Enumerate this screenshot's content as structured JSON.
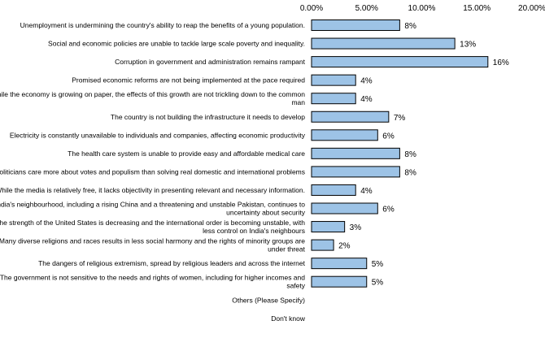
{
  "chart_data": {
    "type": "bar",
    "orientation": "horizontal",
    "title": "",
    "xlabel": "",
    "ylabel": "",
    "xlim": [
      0,
      20
    ],
    "tick_values": [
      0,
      5,
      10,
      15,
      20
    ],
    "tick_labels": [
      "0.00%",
      "5.00%",
      "10.00%",
      "15.00%",
      "20.00%"
    ],
    "bar_color": "#9dc3e6",
    "bar_border_color": "#000000",
    "categories": [
      {
        "label": "Unemployment is undermining  the country's ability to reap the benefits  of a young population.",
        "lines": [
          "Unemployment is undermining  the country's ability to reap the benefits  of a young population."
        ],
        "value": 8,
        "value_label": "8%"
      },
      {
        "label": "Social and economic policies are unable to tackle large scale poverty and inequality.",
        "lines": [
          "Social and economic policies are unable to tackle large scale poverty and inequality."
        ],
        "value": 13,
        "value_label": "13%"
      },
      {
        "label": "Corruption in government and administration remains rampant",
        "lines": [
          "Corruption in government and administration remains rampant"
        ],
        "value": 16,
        "value_label": "16%"
      },
      {
        "label": "Promised economic reforms are not being implemented at the pace required",
        "lines": [
          "Promised economic reforms are not being implemented at the pace required"
        ],
        "value": 4,
        "value_label": "4%"
      },
      {
        "label": "While the economy is growing on paper, the effects of this growth are not trickling down to the common man",
        "lines": [
          "While the economy is growing on paper, the effects of this growth are not trickling down to the common",
          "man"
        ],
        "value": 4,
        "value_label": "4%"
      },
      {
        "label": "The country is not building the infrastructure it needs to develop",
        "lines": [
          "The country is not building the infrastructure it needs to develop"
        ],
        "value": 7,
        "value_label": "7%"
      },
      {
        "label": "Electricity is constantly unavailable to individuals and companies, affecting economic productivity",
        "lines": [
          "Electricity is constantly unavailable to individuals and companies, affecting economic productivity"
        ],
        "value": 6,
        "value_label": "6%"
      },
      {
        "label": "The health care system is unable to provide easy and affordable medical care",
        "lines": [
          "The health care system is unable to provide easy and affordable medical care"
        ],
        "value": 8,
        "value_label": "8%"
      },
      {
        "label": "Politicians care more about votes and populism than solving real domestic and international problems",
        "lines": [
          "Politicians care more about votes and populism than solving real domestic and international problems"
        ],
        "value": 8,
        "value_label": "8%"
      },
      {
        "label": "While the media is relatively free, it lacks objectivity in presenting relevant and necessary information.",
        "lines": [
          "While the media is relatively free, it lacks objectivity in presenting relevant and necessary information."
        ],
        "value": 4,
        "value_label": "4%"
      },
      {
        "label": "India's neighbourhood,  including  a rising China and a threatening  and unstable Pakistan, continues to uncertainty about security",
        "lines": [
          "India's neighbourhood,  including  a rising China and a threatening  and unstable Pakistan, continues to",
          "uncertainty about security"
        ],
        "value": 6,
        "value_label": "6%"
      },
      {
        "label": "The strength of the United States is decreasing and the international order is becoming unstable, with less control on India's neighbours",
        "lines": [
          "The strength of the United States is decreasing and the international order is becoming unstable, with",
          "less control on India's neighbours"
        ],
        "value": 3,
        "value_label": "3%"
      },
      {
        "label": "Many diverse religions and races results in less social harmony and the rights of minority groups are under threat",
        "lines": [
          "Many diverse religions and races results in less social harmony and the rights of minority groups are",
          "under threat"
        ],
        "value": 2,
        "value_label": "2%"
      },
      {
        "label": "The dangers of religious extremism, spread by religious leaders and across the internet",
        "lines": [
          "The dangers of religious extremism, spread by religious leaders and across the internet"
        ],
        "value": 5,
        "value_label": "5%"
      },
      {
        "label": "The government is not sensitive to the needs and rights of women, including for higher incomes and safety",
        "lines": [
          "The government is not sensitive to the needs and rights of women, including for higher incomes and",
          "safety"
        ],
        "value": 5,
        "value_label": "5%"
      },
      {
        "label": "Others (Please Specify)",
        "lines": [
          "Others (Please Specify)"
        ],
        "value": null,
        "value_label": ""
      },
      {
        "label": "Don't know",
        "lines": [
          "Don't know"
        ],
        "value": null,
        "value_label": ""
      }
    ]
  }
}
